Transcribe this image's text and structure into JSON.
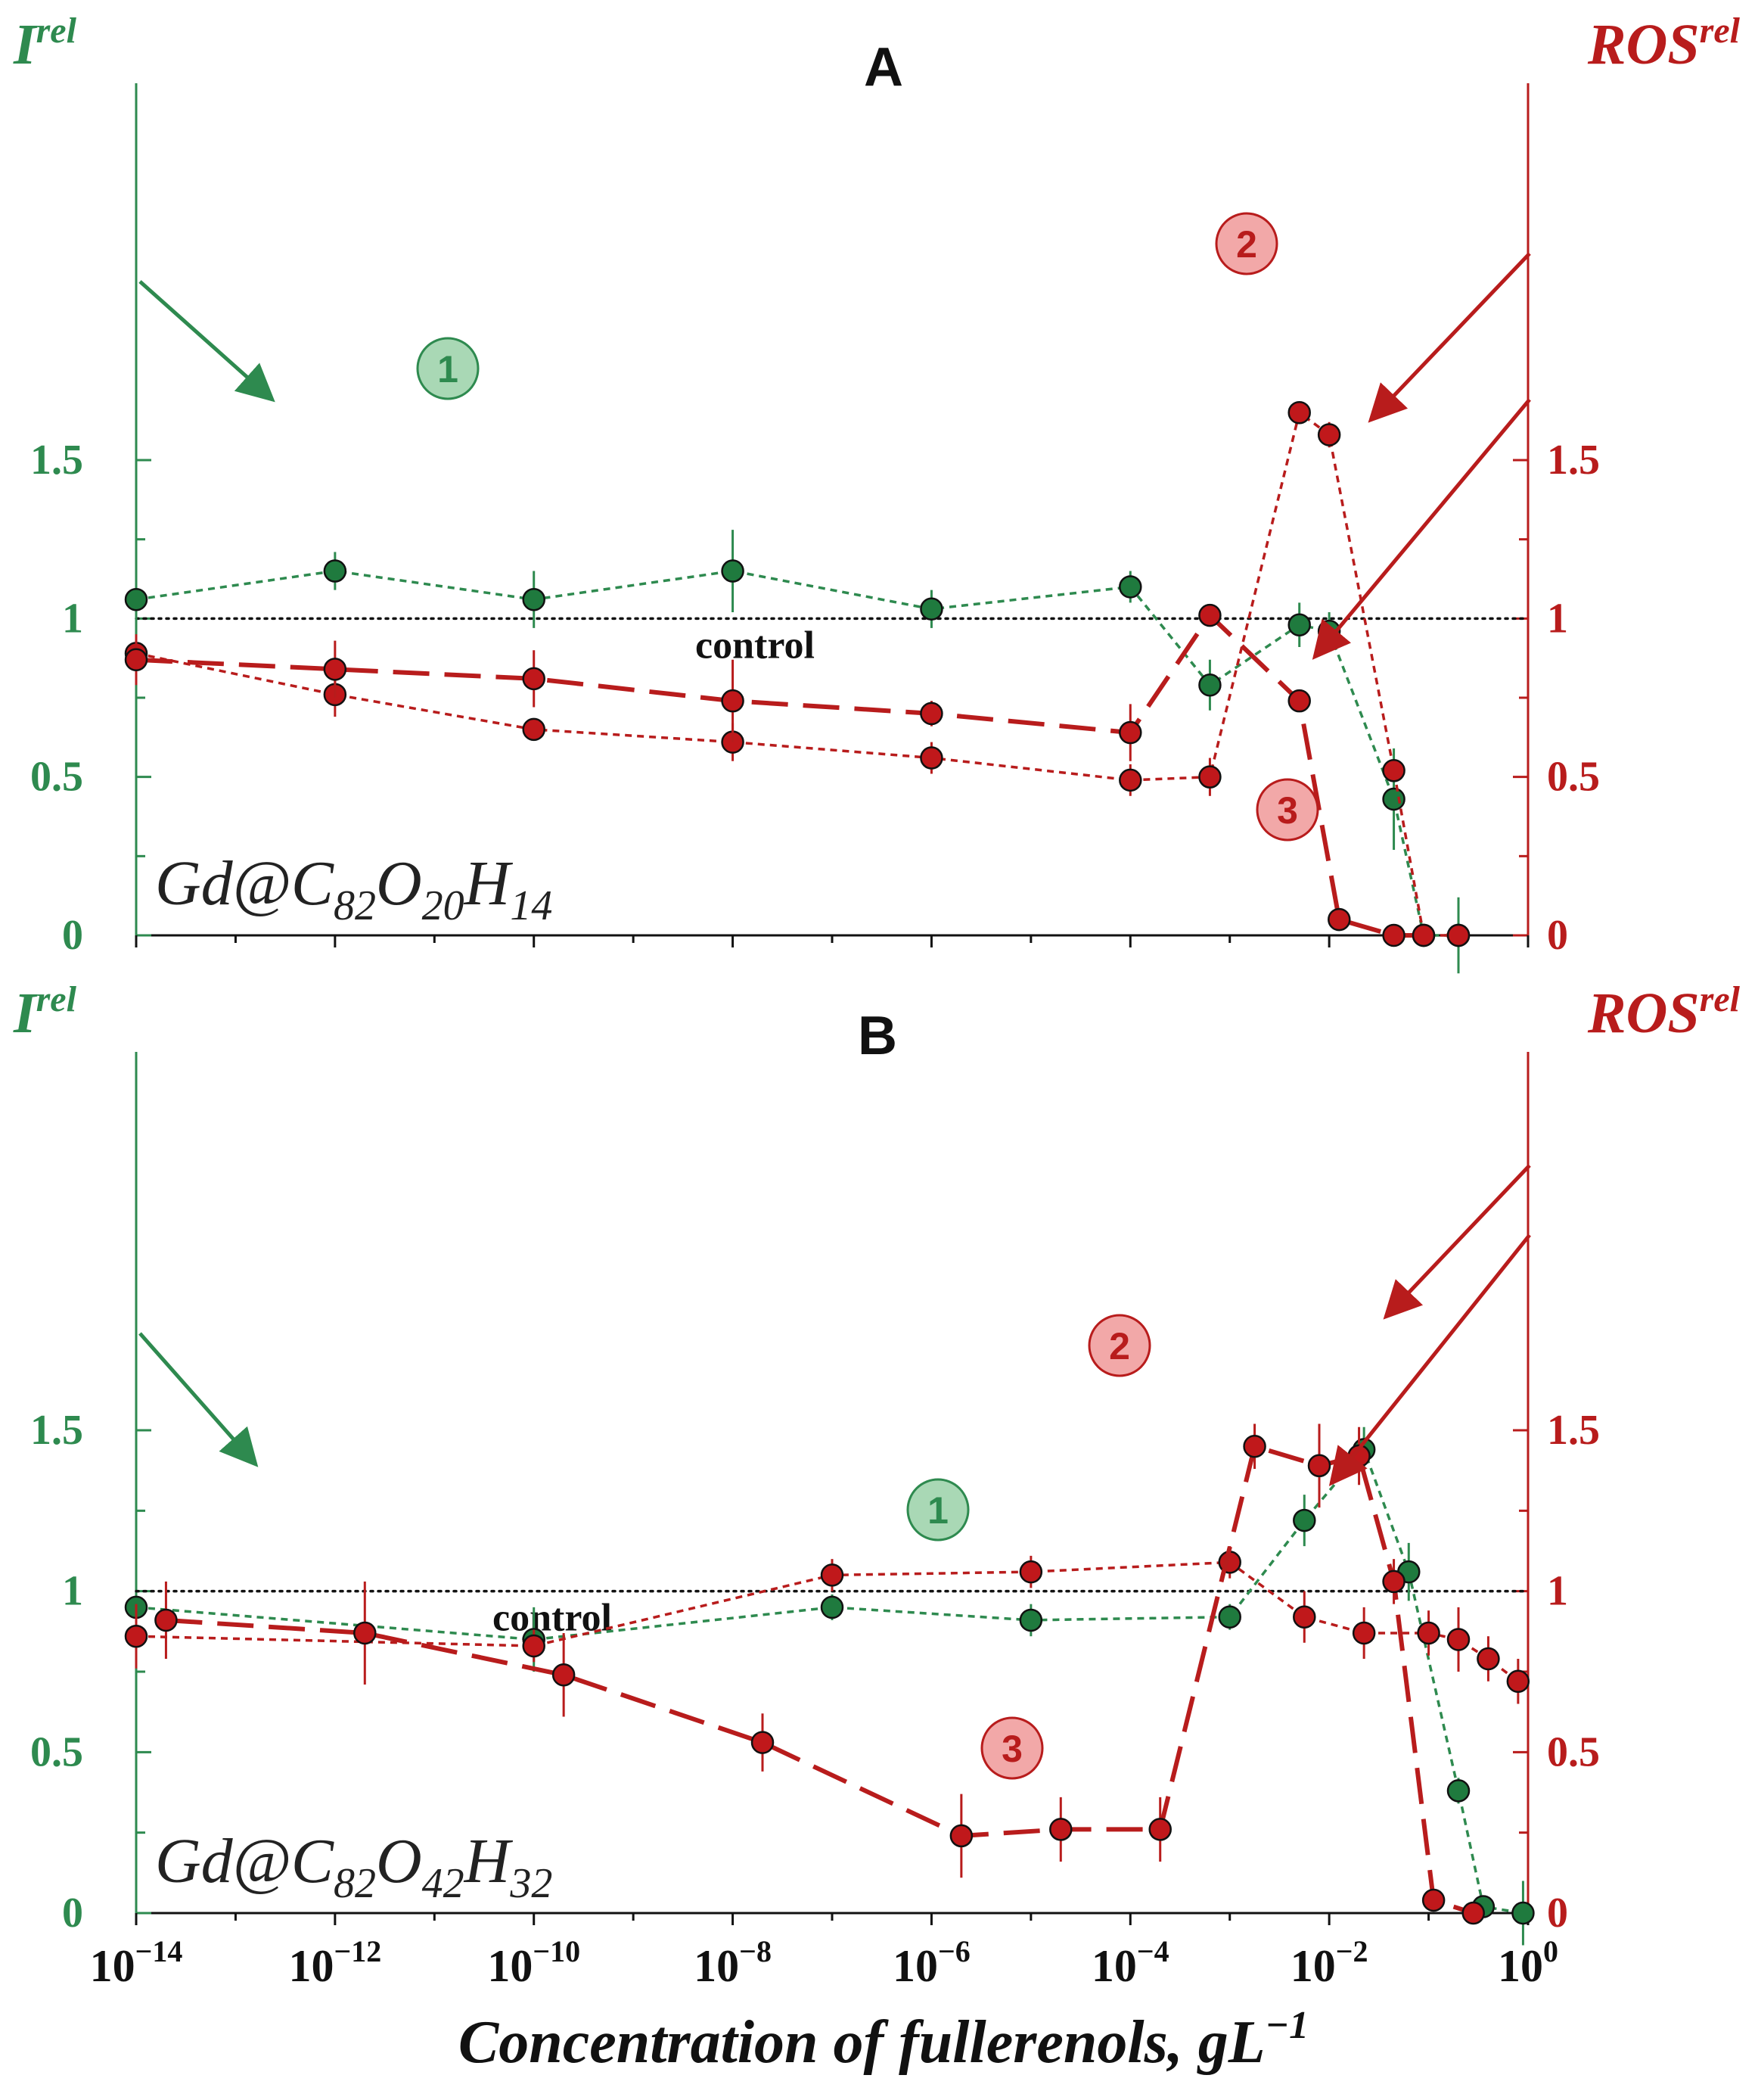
{
  "colors": {
    "green": "#2e8a4f",
    "green_dot": "#1f7a3e",
    "red": "#b81c1c",
    "red_dot": "#c0181b",
    "green_badge_fill": "#a9d8b5",
    "red_badge_fill": "#f2a8a8"
  },
  "left_axis_label": {
    "main": "I",
    "sup": "rel"
  },
  "right_axis_label": {
    "main": "ROS",
    "sup": "rel"
  },
  "control_label": "control",
  "x_axis": {
    "label_main": "Concentration of fullerenols, gL",
    "label_sup": "−1",
    "tick_base": "10",
    "tick_exponents": [
      "−14",
      "−12",
      "−10",
      "−8",
      "−6",
      "−4",
      "−2",
      "0"
    ],
    "scale": "log10",
    "range_log10": [
      -14,
      0
    ]
  },
  "y_ticks": [
    "0",
    "0.5",
    "1",
    "1.5"
  ],
  "chart_data": [
    {
      "panel": "A",
      "formula": {
        "p1": "Gd@C",
        "s1": "82",
        "p2": "O",
        "s2": "20",
        "p3": "H",
        "s3": "14"
      },
      "type": "line",
      "ylim": [
        0,
        1.75
      ],
      "control": 1,
      "series": [
        {
          "name": "1",
          "axis": "left",
          "style": "dotted-green",
          "points": [
            {
              "x": -14,
              "y": 1.06,
              "err": 0.11
            },
            {
              "x": -12,
              "y": 1.15,
              "err": 0.06
            },
            {
              "x": -10,
              "y": 1.06,
              "err": 0.09
            },
            {
              "x": -8,
              "y": 1.15,
              "err": 0.13
            },
            {
              "x": -6,
              "y": 1.03,
              "err": 0.06
            },
            {
              "x": -4,
              "y": 1.1,
              "err": 0.05
            },
            {
              "x": -3.2,
              "y": 0.79,
              "err": 0.08
            },
            {
              "x": -2.3,
              "y": 0.98,
              "err": 0.07
            },
            {
              "x": -2.0,
              "y": 0.96,
              "err": 0.06
            },
            {
              "x": -1.35,
              "y": 0.43,
              "err": 0.16
            },
            {
              "x": -1.05,
              "y": 0,
              "err": 0
            },
            {
              "x": -0.7,
              "y": 0,
              "err": 0.12
            }
          ]
        },
        {
          "name": "2",
          "axis": "right",
          "style": "dotted-red",
          "points": [
            {
              "x": -14,
              "y": 0.89,
              "err": 0.06
            },
            {
              "x": -12,
              "y": 0.76,
              "err": 0.07
            },
            {
              "x": -10,
              "y": 0.65,
              "err": 0.03
            },
            {
              "x": -8,
              "y": 0.61,
              "err": 0.06
            },
            {
              "x": -6,
              "y": 0.56,
              "err": 0.05
            },
            {
              "x": -4,
              "y": 0.49,
              "err": 0.05
            },
            {
              "x": -3.2,
              "y": 0.5,
              "err": 0.06
            },
            {
              "x": -2.3,
              "y": 1.65,
              "err": 0.03
            },
            {
              "x": -2.0,
              "y": 1.58,
              "err": 0.04
            },
            {
              "x": -1.35,
              "y": 0.52,
              "err": 0.03
            },
            {
              "x": -1.05,
              "y": 0,
              "err": 0
            },
            {
              "x": -0.7,
              "y": 0,
              "err": 0
            }
          ]
        },
        {
          "name": "3",
          "axis": "right",
          "style": "dashed-red",
          "points": [
            {
              "x": -14,
              "y": 0.87,
              "err": 0.08
            },
            {
              "x": -12,
              "y": 0.84,
              "err": 0.09
            },
            {
              "x": -10,
              "y": 0.81,
              "err": 0.09
            },
            {
              "x": -8,
              "y": 0.74,
              "err": 0.13
            },
            {
              "x": -6,
              "y": 0.7,
              "err": 0.04
            },
            {
              "x": -4,
              "y": 0.64,
              "err": 0.09
            },
            {
              "x": -3.2,
              "y": 1.01,
              "err": 0.02
            },
            {
              "x": -2.3,
              "y": 0.74,
              "err": 0.02
            },
            {
              "x": -1.9,
              "y": 0.05,
              "err": 0.02
            },
            {
              "x": -1.35,
              "y": 0,
              "err": 0
            },
            {
              "x": -1.05,
              "y": 0,
              "err": 0
            },
            {
              "x": -0.7,
              "y": 0,
              "err": 0
            }
          ]
        }
      ]
    },
    {
      "panel": "B",
      "formula": {
        "p1": "Gd@C",
        "s1": "82",
        "p2": "O",
        "s2": "42",
        "p3": "H",
        "s3": "32"
      },
      "type": "line",
      "ylim": [
        0,
        1.75
      ],
      "control": 1,
      "series": [
        {
          "name": "1",
          "axis": "left",
          "style": "dotted-green",
          "points": [
            {
              "x": -14,
              "y": 0.95,
              "err": 0.04
            },
            {
              "x": -10,
              "y": 0.85,
              "err": 0.1
            },
            {
              "x": -7,
              "y": 0.95,
              "err": 0.04
            },
            {
              "x": -5,
              "y": 0.91,
              "err": 0.05
            },
            {
              "x": -3,
              "y": 0.92,
              "err": 0.04
            },
            {
              "x": -2.25,
              "y": 1.22,
              "err": 0.08
            },
            {
              "x": -1.65,
              "y": 1.44,
              "err": 0.07
            },
            {
              "x": -1.2,
              "y": 1.06,
              "err": 0.09
            },
            {
              "x": -0.7,
              "y": 0.38,
              "err": 0.04
            },
            {
              "x": -0.45,
              "y": 0.02,
              "err": 0
            },
            {
              "x": -0.05,
              "y": 0,
              "err": 0.1
            }
          ]
        },
        {
          "name": "2",
          "axis": "right",
          "style": "dotted-red",
          "points": [
            {
              "x": -14,
              "y": 0.86,
              "err": 0.1
            },
            {
              "x": -10,
              "y": 0.83,
              "err": 0.05
            },
            {
              "x": -7,
              "y": 1.05,
              "err": 0.05
            },
            {
              "x": -5,
              "y": 1.06,
              "err": 0.05
            },
            {
              "x": -3,
              "y": 1.09,
              "err": 0.05
            },
            {
              "x": -2.25,
              "y": 0.92,
              "err": 0.08
            },
            {
              "x": -1.65,
              "y": 0.87,
              "err": 0.08
            },
            {
              "x": -1.0,
              "y": 0.87,
              "err": 0.07
            },
            {
              "x": -0.7,
              "y": 0.85,
              "err": 0.1
            },
            {
              "x": -0.4,
              "y": 0.79,
              "err": 0.07
            },
            {
              "x": -0.1,
              "y": 0.72,
              "err": 0.07
            }
          ]
        },
        {
          "name": "3",
          "axis": "right",
          "style": "dashed-red",
          "points": [
            {
              "x": -13.7,
              "y": 0.91,
              "err": 0.12
            },
            {
              "x": -11.7,
              "y": 0.87,
              "err": 0.16
            },
            {
              "x": -9.7,
              "y": 0.74,
              "err": 0.13
            },
            {
              "x": -7.7,
              "y": 0.53,
              "err": 0.09
            },
            {
              "x": -5.7,
              "y": 0.24,
              "err": 0.13
            },
            {
              "x": -4.7,
              "y": 0.26,
              "err": 0.1
            },
            {
              "x": -3.7,
              "y": 0.26,
              "err": 0.1
            },
            {
              "x": -2.75,
              "y": 1.45,
              "err": 0.07
            },
            {
              "x": -2.1,
              "y": 1.39,
              "err": 0.13
            },
            {
              "x": -1.7,
              "y": 1.42,
              "err": 0.09
            },
            {
              "x": -1.35,
              "y": 1.03,
              "err": 0.07
            },
            {
              "x": -0.95,
              "y": 0.04,
              "err": 0
            },
            {
              "x": -0.55,
              "y": 0,
              "err": 0
            }
          ]
        }
      ]
    }
  ]
}
